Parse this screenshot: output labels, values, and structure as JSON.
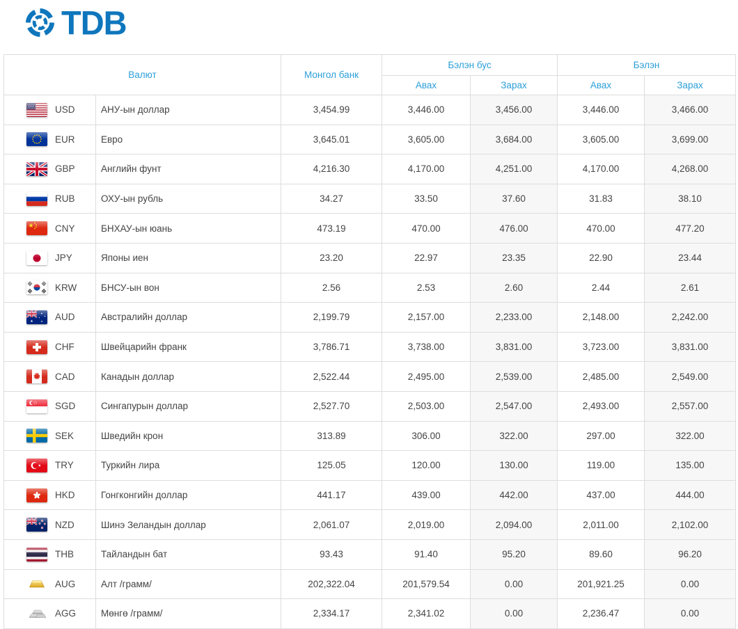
{
  "brand": {
    "logo_text": "TDB"
  },
  "colors": {
    "brand_blue": "#0e76bc",
    "header_blue": "#2b9fd9",
    "table_border": "#dddddd",
    "cell_text": "#444444",
    "sell_column_bg": "#f7f7f7"
  },
  "table": {
    "headers": {
      "currency": "Валют",
      "mongol_bank": "Монгол банк",
      "non_cash": "Бэлэн бус",
      "cash": "Бэлэн",
      "buy": "Авах",
      "sell": "Зарах"
    },
    "rows": [
      {
        "flag": "us",
        "code": "USD",
        "name": "АНУ-ын доллар",
        "mongol_bank": "3,454.99",
        "non_cash_buy": "3,446.00",
        "non_cash_sell": "3,456.00",
        "cash_buy": "3,446.00",
        "cash_sell": "3,466.00"
      },
      {
        "flag": "eu",
        "code": "EUR",
        "name": "Евро",
        "mongol_bank": "3,645.01",
        "non_cash_buy": "3,605.00",
        "non_cash_sell": "3,684.00",
        "cash_buy": "3,605.00",
        "cash_sell": "3,699.00"
      },
      {
        "flag": "gb",
        "code": "GBP",
        "name": "Английн фунт",
        "mongol_bank": "4,216.30",
        "non_cash_buy": "4,170.00",
        "non_cash_sell": "4,251.00",
        "cash_buy": "4,170.00",
        "cash_sell": "4,268.00"
      },
      {
        "flag": "ru",
        "code": "RUB",
        "name": "ОХУ-ын рубль",
        "mongol_bank": "34.27",
        "non_cash_buy": "33.50",
        "non_cash_sell": "37.60",
        "cash_buy": "31.83",
        "cash_sell": "38.10"
      },
      {
        "flag": "cn",
        "code": "CNY",
        "name": "БНХАУ-ын юань",
        "mongol_bank": "473.19",
        "non_cash_buy": "470.00",
        "non_cash_sell": "476.00",
        "cash_buy": "470.00",
        "cash_sell": "477.20"
      },
      {
        "flag": "jp",
        "code": "JPY",
        "name": "Японы иен",
        "mongol_bank": "23.20",
        "non_cash_buy": "22.97",
        "non_cash_sell": "23.35",
        "cash_buy": "22.90",
        "cash_sell": "23.44"
      },
      {
        "flag": "kr",
        "code": "KRW",
        "name": "БНСУ-ын вон",
        "mongol_bank": "2.56",
        "non_cash_buy": "2.53",
        "non_cash_sell": "2.60",
        "cash_buy": "2.44",
        "cash_sell": "2.61"
      },
      {
        "flag": "au",
        "code": "AUD",
        "name": "Австралийн доллар",
        "mongol_bank": "2,199.79",
        "non_cash_buy": "2,157.00",
        "non_cash_sell": "2,233.00",
        "cash_buy": "2,148.00",
        "cash_sell": "2,242.00"
      },
      {
        "flag": "ch",
        "code": "CHF",
        "name": "Швейцарийн франк",
        "mongol_bank": "3,786.71",
        "non_cash_buy": "3,738.00",
        "non_cash_sell": "3,831.00",
        "cash_buy": "3,723.00",
        "cash_sell": "3,831.00"
      },
      {
        "flag": "ca",
        "code": "CAD",
        "name": "Канадын доллар",
        "mongol_bank": "2,522.44",
        "non_cash_buy": "2,495.00",
        "non_cash_sell": "2,539.00",
        "cash_buy": "2,485.00",
        "cash_sell": "2,549.00"
      },
      {
        "flag": "sg",
        "code": "SGD",
        "name": "Сингапурын доллар",
        "mongol_bank": "2,527.70",
        "non_cash_buy": "2,503.00",
        "non_cash_sell": "2,547.00",
        "cash_buy": "2,493.00",
        "cash_sell": "2,557.00"
      },
      {
        "flag": "se",
        "code": "SEK",
        "name": "Шведийн крон",
        "mongol_bank": "313.89",
        "non_cash_buy": "306.00",
        "non_cash_sell": "322.00",
        "cash_buy": "297.00",
        "cash_sell": "322.00"
      },
      {
        "flag": "tr",
        "code": "TRY",
        "name": "Туркийн лира",
        "mongol_bank": "125.05",
        "non_cash_buy": "120.00",
        "non_cash_sell": "130.00",
        "cash_buy": "119.00",
        "cash_sell": "135.00"
      },
      {
        "flag": "hk",
        "code": "HKD",
        "name": "Гонгконгийн доллар",
        "mongol_bank": "441.17",
        "non_cash_buy": "439.00",
        "non_cash_sell": "442.00",
        "cash_buy": "437.00",
        "cash_sell": "444.00"
      },
      {
        "flag": "nz",
        "code": "NZD",
        "name": "Шинэ Зеландын доллар",
        "mongol_bank": "2,061.07",
        "non_cash_buy": "2,019.00",
        "non_cash_sell": "2,094.00",
        "cash_buy": "2,011.00",
        "cash_sell": "2,102.00"
      },
      {
        "flag": "th",
        "code": "THB",
        "name": "Тайландын бат",
        "mongol_bank": "93.43",
        "non_cash_buy": "91.40",
        "non_cash_sell": "95.20",
        "cash_buy": "89.60",
        "cash_sell": "96.20"
      },
      {
        "flag": "gold",
        "code": "AUG",
        "name": "Алт /грамм/",
        "mongol_bank": "202,322.04",
        "non_cash_buy": "201,579.54",
        "non_cash_sell": "0.00",
        "cash_buy": "201,921.25",
        "cash_sell": "0.00"
      },
      {
        "flag": "silver",
        "code": "AGG",
        "name": "Мөнгө /грамм/",
        "mongol_bank": "2,334.17",
        "non_cash_buy": "2,341.02",
        "non_cash_sell": "0.00",
        "cash_buy": "2,236.47",
        "cash_sell": "0.00"
      }
    ]
  }
}
